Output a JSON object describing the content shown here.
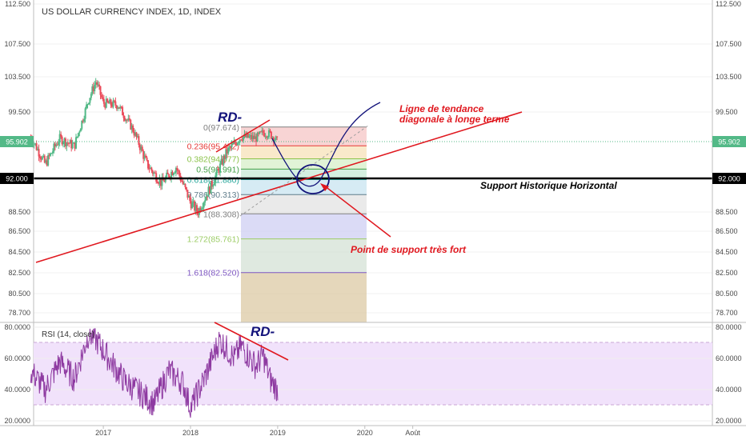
{
  "chart_data": [
    {
      "type": "candlestick",
      "title": "US DOLLAR CURRENCY INDEX, 1D, INDEX",
      "y_ticks": [
        "112.500",
        "107.500",
        "103.500",
        "99.500",
        "95.902",
        "92.000",
        "88.500",
        "86.500",
        "84.500",
        "82.500",
        "80.500",
        "78.700"
      ],
      "current_price": "95.902",
      "support_level": "92.000",
      "ylim": [
        78.0,
        113.0
      ],
      "x_ticks": [
        "2017",
        "2018",
        "2019",
        "2020",
        "Août"
      ],
      "approx_close_series": [
        {
          "x": "2016-03",
          "y": 96.5
        },
        {
          "x": "2016-05",
          "y": 93.5
        },
        {
          "x": "2016-07",
          "y": 96.3
        },
        {
          "x": "2016-09",
          "y": 95.4
        },
        {
          "x": "2016-11",
          "y": 101.0
        },
        {
          "x": "2016-12",
          "y": 103.0
        },
        {
          "x": "2017-01",
          "y": 100.5
        },
        {
          "x": "2017-03",
          "y": 100.3
        },
        {
          "x": "2017-05",
          "y": 97.5
        },
        {
          "x": "2017-07",
          "y": 93.5
        },
        {
          "x": "2017-09",
          "y": 91.5
        },
        {
          "x": "2017-11",
          "y": 93.2
        },
        {
          "x": "2018-01",
          "y": 89.5
        },
        {
          "x": "2018-02",
          "y": 88.5
        },
        {
          "x": "2018-04",
          "y": 91.5
        },
        {
          "x": "2018-06",
          "y": 94.8
        },
        {
          "x": "2018-08",
          "y": 96.5
        },
        {
          "x": "2018-10",
          "y": 96.3
        },
        {
          "x": "2018-11",
          "y": 97.0
        },
        {
          "x": "2018-12",
          "y": 96.8
        },
        {
          "x": "2019-01",
          "y": 95.9
        }
      ],
      "fibonacci": [
        {
          "ratio": "0",
          "price": "97.674",
          "color": "#7f7f7f"
        },
        {
          "ratio": "0.236",
          "price": "95.452",
          "color": "#e53935"
        },
        {
          "ratio": "0.382",
          "price": "94.077",
          "color": "#8bc34a"
        },
        {
          "ratio": "0.5",
          "price": "92.991",
          "color": "#43a047"
        },
        {
          "ratio": "0.618",
          "price": "91.880",
          "color": "#26a69a"
        },
        {
          "ratio": "0.786",
          "price": "90.313",
          "color": "#607d8b"
        },
        {
          "ratio": "1",
          "price": "88.308",
          "color": "#7f7f7f"
        },
        {
          "ratio": "1.272",
          "price": "85.761",
          "color": "#9ccc65"
        },
        {
          "ratio": "1.618",
          "price": "82.520",
          "color": "#7e57c2"
        }
      ],
      "annotations": {
        "divergence": "RD-",
        "trendline": "Ligne de tendance diagonale à longe terme",
        "trendline_line1": "Ligne de tendance",
        "trendline_line2": "diagonale à longe terme",
        "support_label": "Support Historique Horizontal",
        "support_point": "Point de support très fort"
      }
    },
    {
      "type": "line",
      "title": "RSI (14, close)",
      "y_ticks": [
        "80.0000",
        "60.0000",
        "40.0000",
        "20.0000"
      ],
      "ylim": [
        20,
        80
      ],
      "overbought": 70,
      "oversold": 30,
      "approx_series": [
        {
          "x": "2016-03",
          "y": 52
        },
        {
          "x": "2016-05",
          "y": 40
        },
        {
          "x": "2016-07",
          "y": 58
        },
        {
          "x": "2016-09",
          "y": 47
        },
        {
          "x": "2016-11",
          "y": 76
        },
        {
          "x": "2016-12",
          "y": 72
        },
        {
          "x": "2017-02",
          "y": 58
        },
        {
          "x": "2017-04",
          "y": 45
        },
        {
          "x": "2017-06",
          "y": 38
        },
        {
          "x": "2017-08",
          "y": 31
        },
        {
          "x": "2017-10",
          "y": 52
        },
        {
          "x": "2017-12",
          "y": 44
        },
        {
          "x": "2018-01",
          "y": 28
        },
        {
          "x": "2018-03",
          "y": 48
        },
        {
          "x": "2018-05",
          "y": 72
        },
        {
          "x": "2018-07",
          "y": 60
        },
        {
          "x": "2018-08",
          "y": 68
        },
        {
          "x": "2018-10",
          "y": 55
        },
        {
          "x": "2018-11",
          "y": 62
        },
        {
          "x": "2018-12",
          "y": 46
        },
        {
          "x": "2019-01",
          "y": 40
        }
      ],
      "annotation": "RD-"
    }
  ],
  "colors": {
    "up": "#53b987",
    "down": "#eb4d5c",
    "annotation_red": "#e0181f",
    "annotation_navy": "#12127a",
    "rsi_line": "#8e3aa1",
    "rsi_band": "#f1e2fb"
  }
}
